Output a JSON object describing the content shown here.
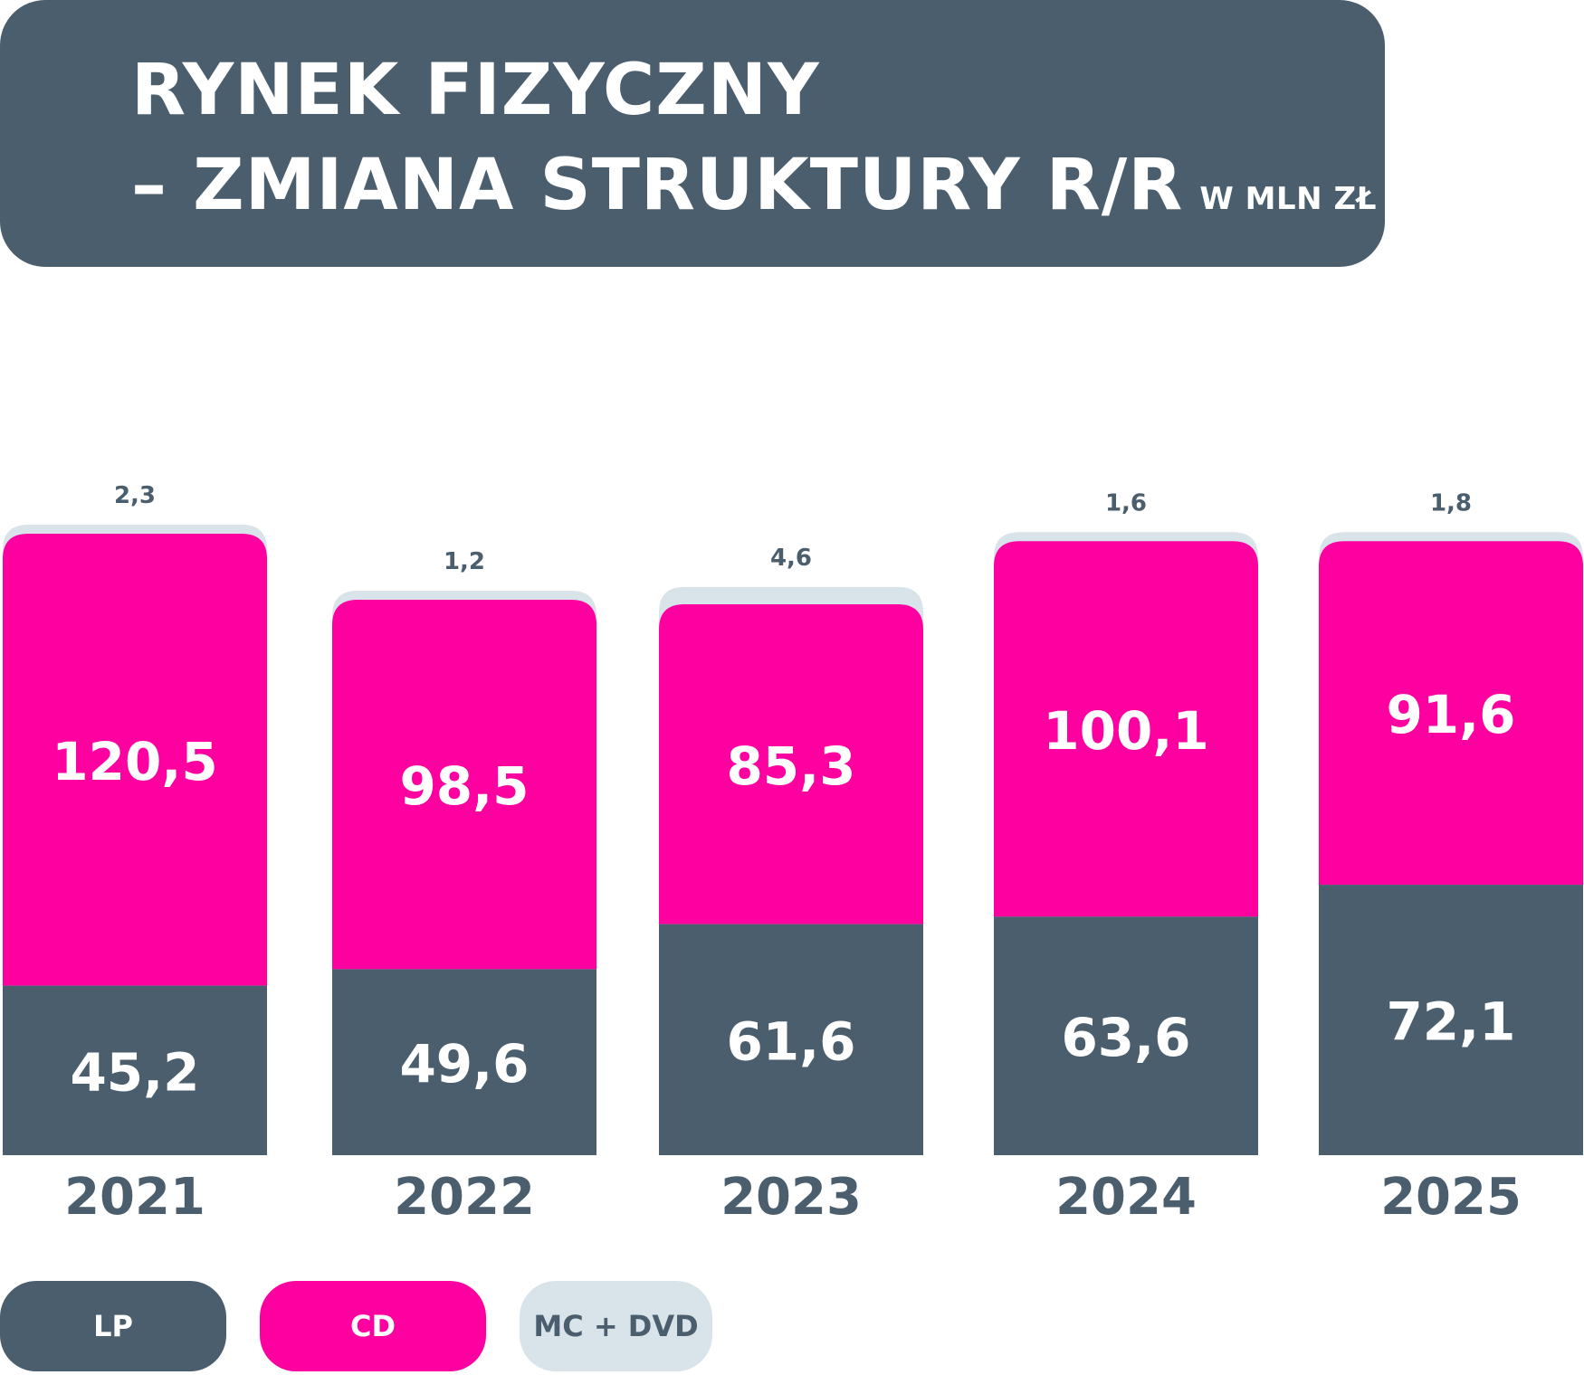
{
  "title": {
    "line1": "RYNEK FIZYCZNY",
    "line2": "– ZMIANA STRUKTURY R/R",
    "unit": "W MLN ZŁ"
  },
  "legend": [
    {
      "label": "LP",
      "color": "#4b5e6e"
    },
    {
      "label": "CD",
      "color": "#ff00a0"
    },
    {
      "label": "MC + DVD",
      "color": "#d8e3ea"
    }
  ],
  "chart_data": {
    "type": "bar",
    "stacked": true,
    "categories": [
      "2021",
      "2022",
      "2023",
      "2024",
      "2025"
    ],
    "series": [
      {
        "name": "LP",
        "color": "#4b5e6e",
        "values": [
          45.2,
          49.6,
          61.6,
          63.6,
          72.1
        ],
        "labels": [
          "45,2",
          "49,6",
          "61,6",
          "63,6",
          "72,1"
        ]
      },
      {
        "name": "CD",
        "color": "#ff00a0",
        "values": [
          120.5,
          98.5,
          85.3,
          100.1,
          91.6
        ],
        "labels": [
          "120,5",
          "98,5",
          "85,3",
          "100,1",
          "91,6"
        ]
      },
      {
        "name": "MC + DVD",
        "color": "#d8e3ea",
        "values": [
          2.3,
          1.2,
          4.6,
          1.6,
          1.8
        ],
        "labels": [
          "2,3",
          "1,2",
          "4,6",
          "1,6",
          "1,8"
        ]
      }
    ],
    "title": "RYNEK FIZYCZNY – ZMIANA STRUKTURY R/R",
    "ylabel": "",
    "xlabel": "",
    "grid": false,
    "legend_position": "bottom-left"
  }
}
